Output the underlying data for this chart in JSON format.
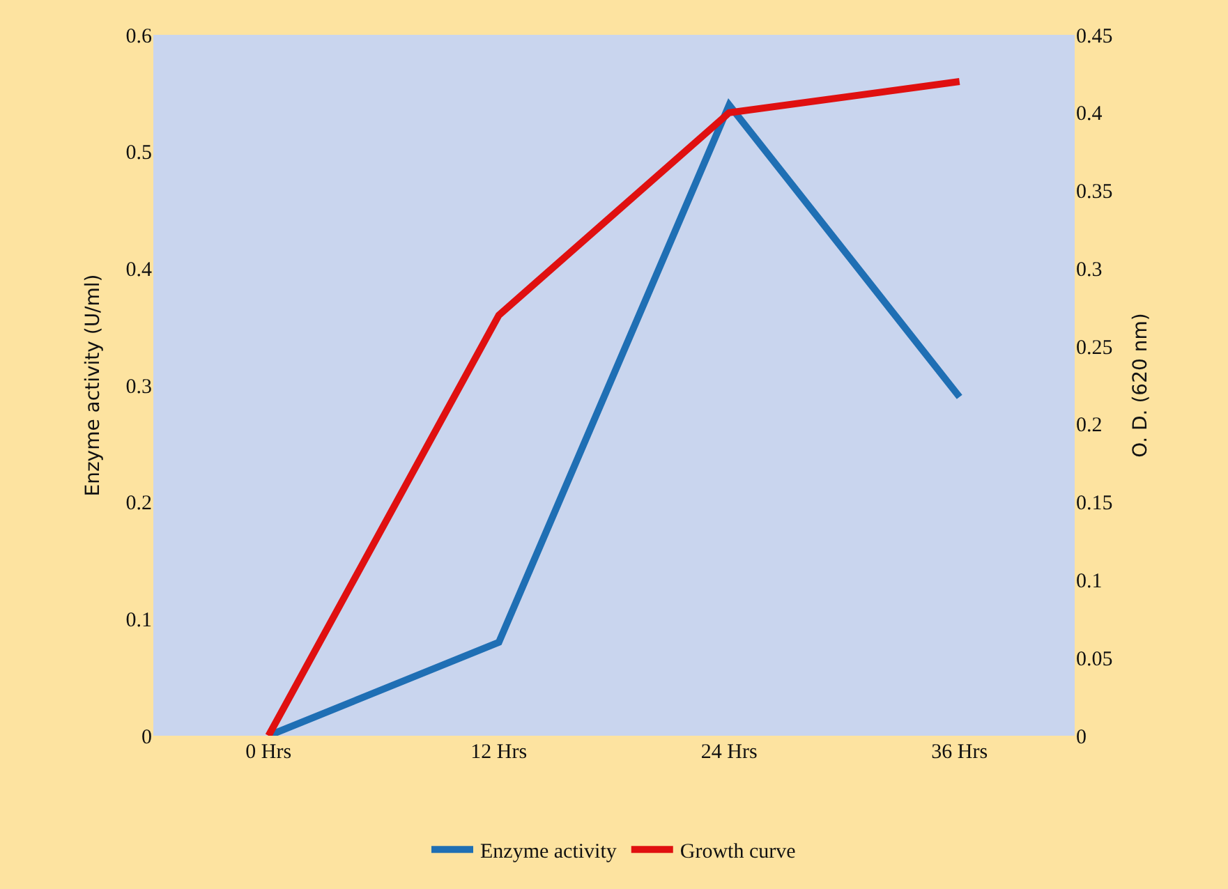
{
  "chart_data": {
    "type": "line",
    "ylabel": "Enzyme activity (U/ml)",
    "y2label": "O. D. (620 nm)",
    "categories": [
      "0 Hrs",
      "12 Hrs",
      "24 Hrs",
      "36 Hrs"
    ],
    "series": [
      {
        "name": "Enzyme activity",
        "color": "#1f6fb4",
        "values": [
          0,
          0.08,
          0.54,
          0.29
        ]
      },
      {
        "name": "Growth curve",
        "color": "#e01010",
        "values": [
          0,
          0.27,
          0.4,
          0.42
        ],
        "axis": "y2"
      }
    ],
    "ylim": [
      0,
      0.6
    ],
    "yticks": [
      0,
      0.1,
      0.2,
      0.3,
      0.4,
      0.5,
      0.6
    ],
    "y2lim": [
      0,
      0.45
    ],
    "y2ticks": [
      0,
      0.05,
      0.1,
      0.15,
      0.2,
      0.25,
      0.3,
      0.35,
      0.4,
      0.45
    ],
    "grid": false,
    "legend": "bottom",
    "marker": "none",
    "line_style": "solid"
  }
}
